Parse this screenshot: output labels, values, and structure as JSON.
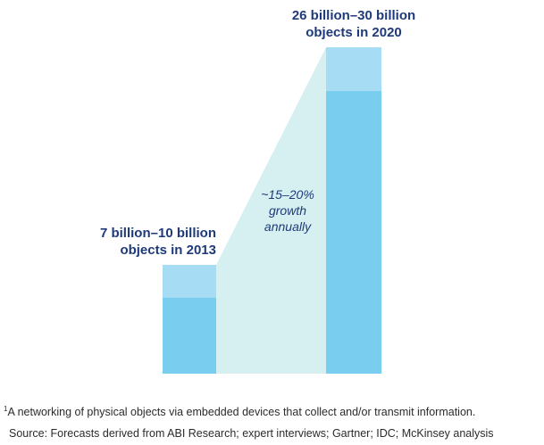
{
  "chart_data": {
    "type": "bar",
    "categories": [
      "2013",
      "2020"
    ],
    "series": [
      {
        "values": [
          7,
          26
        ]
      },
      {
        "values": [
          3,
          4
        ]
      }
    ],
    "ylim": [
      0,
      30
    ],
    "grid": false,
    "legend": "none",
    "annotations": {
      "bar_2013_line1": "7 billion–10 billion",
      "bar_2013_line2": "objects in 2013",
      "bar_2020_line1": "26 billion–30 billion",
      "bar_2020_line2": "objects in 2020",
      "growth_line1": "~15–20%",
      "growth_line2": "growth",
      "growth_line3": "annually"
    },
    "colors": {
      "base": "#79cdef",
      "range": "#a6ddf5",
      "growth_band": "#d6f0f1",
      "label": "#1f3a7a"
    }
  },
  "footnotes": {
    "marker": "1",
    "note": "A networking of physical objects via embedded devices that collect and/or transmit information.",
    "source": "Source: Forecasts derived from ABI Research; expert interviews; Gartner; IDC; McKinsey analysis"
  }
}
